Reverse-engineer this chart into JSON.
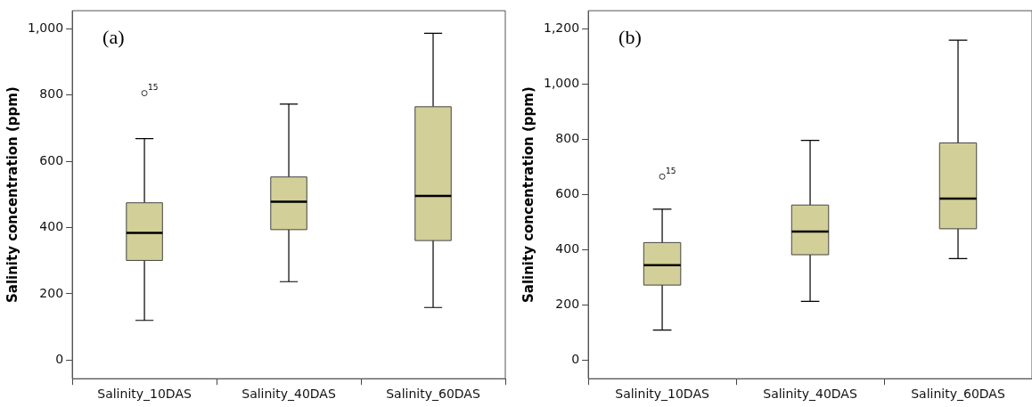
{
  "chart_data": [
    {
      "type": "box",
      "ylabel": "Salinity concentration (ppm)",
      "categories": [
        "Salinity_10DAS",
        "Salinity_40DAS",
        "Salinity_60DAS"
      ],
      "series": [
        {
          "color": "#d3cf98",
          "boxes": [
            {
              "low": 120,
              "q1": 301,
              "median": 384,
              "q3": 475,
              "high": 669,
              "outliers": [
                806
              ]
            },
            {
              "low": 237,
              "q1": 394,
              "median": 478,
              "q3": 553,
              "high": 773
            },
            {
              "low": 159,
              "q1": 361,
              "median": 496,
              "q3": 765,
              "high": 987
            }
          ]
        }
      ],
      "ylim": [
        -56,
        1055
      ],
      "yticks": [
        {
          "value": 0,
          "label": "0"
        },
        {
          "value": 200,
          "label": "200"
        },
        {
          "value": 400,
          "label": "400"
        },
        {
          "value": 600,
          "label": "600"
        },
        {
          "value": 800,
          "label": "800"
        },
        {
          "value": 1000,
          "label": "1,000"
        }
      ],
      "grid": false,
      "legend": false,
      "annotations": [
        "(a)",
        "15"
      ]
    },
    {
      "type": "box",
      "ylabel": "Salinity concentration (ppm)",
      "categories": [
        "Salinity_10DAS",
        "Salinity_40DAS",
        "Salinity_60DAS"
      ],
      "series": [
        {
          "color": "#d3cf98",
          "boxes": [
            {
              "low": 109,
              "q1": 272,
              "median": 344,
              "q3": 426,
              "high": 547,
              "outliers": [
                665
              ]
            },
            {
              "low": 213,
              "q1": 382,
              "median": 466,
              "q3": 562,
              "high": 796
            },
            {
              "low": 368,
              "q1": 476,
              "median": 585,
              "q3": 787,
              "high": 1159
            }
          ]
        }
      ],
      "ylim": [
        -67,
        1266
      ],
      "yticks": [
        {
          "value": 0,
          "label": "0"
        },
        {
          "value": 200,
          "label": "200"
        },
        {
          "value": 400,
          "label": "400"
        },
        {
          "value": 600,
          "label": "600"
        },
        {
          "value": 800,
          "label": "800"
        },
        {
          "value": 1000,
          "label": "1,000"
        },
        {
          "value": 1200,
          "label": "1,200"
        }
      ],
      "grid": false,
      "legend": false,
      "annotations": [
        "(b)",
        "15"
      ]
    }
  ]
}
